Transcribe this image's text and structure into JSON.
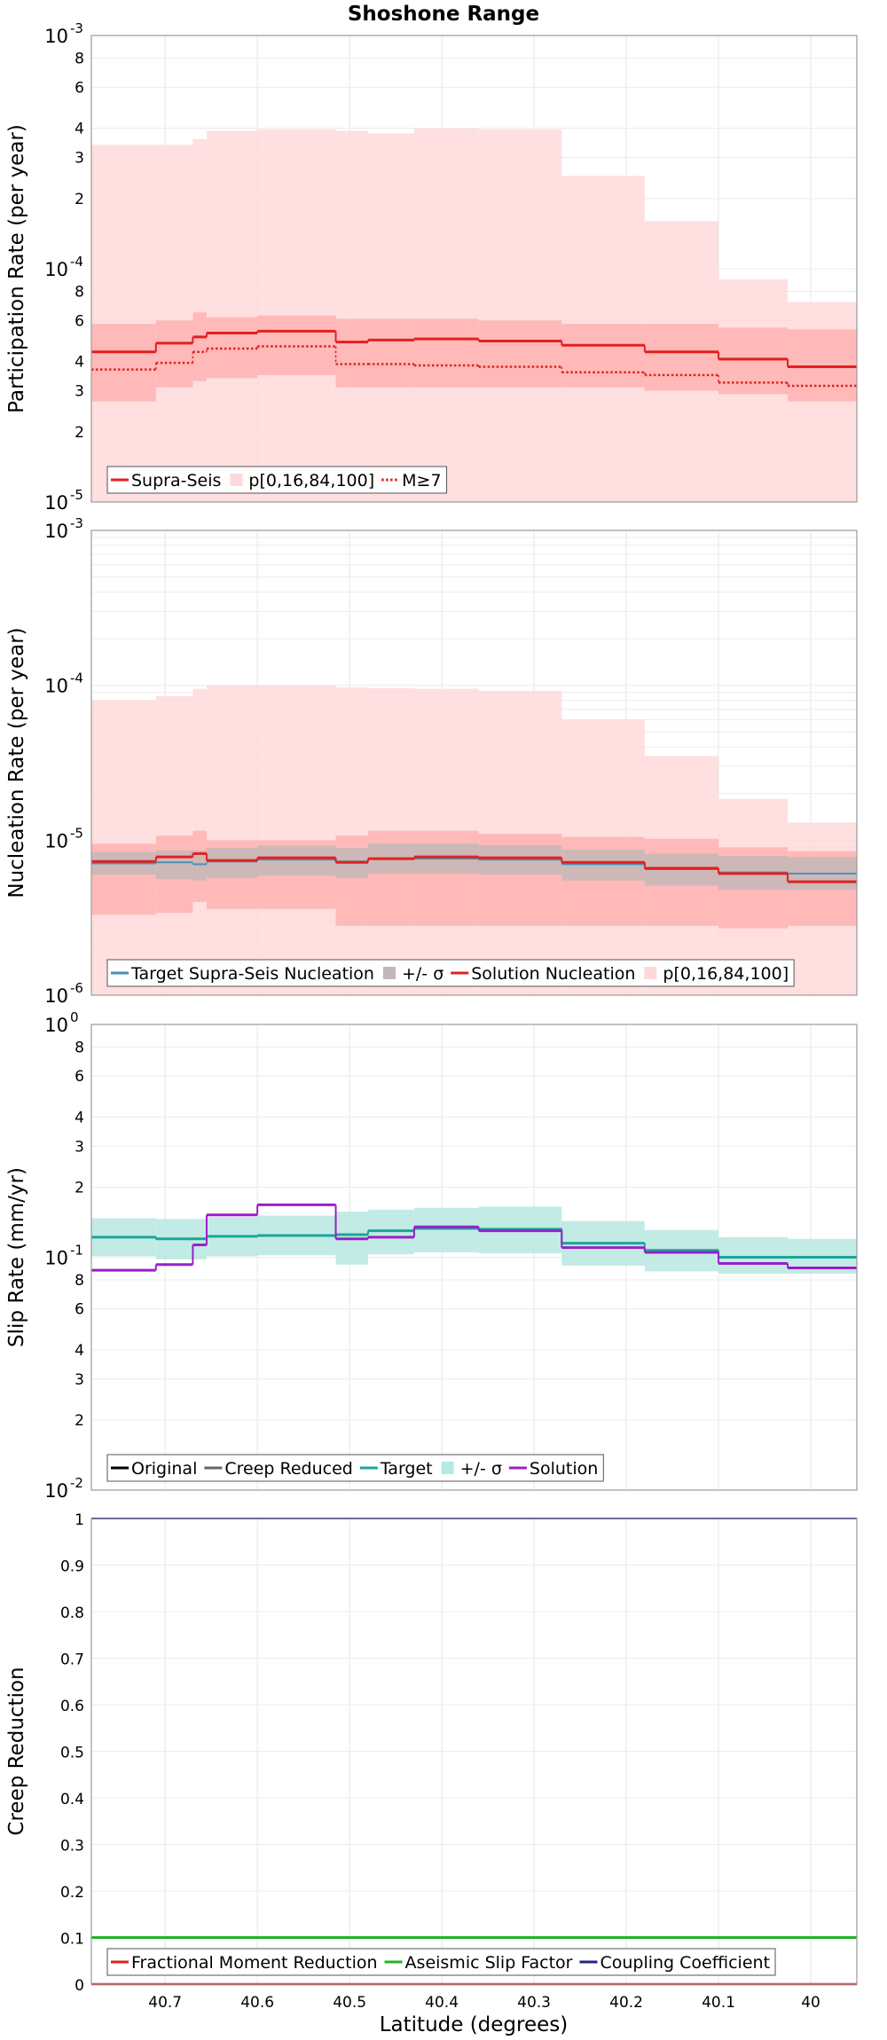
{
  "chart_data": {
    "title": "Shoshone Range",
    "xlabel": "Latitude (degrees)",
    "x_ticks": [
      "40.7",
      "40.6",
      "40.5",
      "40.4",
      "40.3",
      "40.2",
      "40.1",
      "40"
    ],
    "x_tick_values": [
      40.7,
      40.6,
      40.5,
      40.4,
      40.3,
      40.2,
      40.1,
      40.0
    ],
    "xlim": [
      40.78,
      39.95
    ],
    "panels": [
      {
        "type": "step",
        "ylabel": "Participation Rate (per year)",
        "yscale": "log",
        "ylim": [
          1e-05,
          0.001
        ],
        "major_ticks": [
          {
            "base": "10",
            "exp": "-5",
            "value": 1e-05
          },
          {
            "base": "10",
            "exp": "-4",
            "value": 0.0001
          },
          {
            "base": "10",
            "exp": "-3",
            "value": 0.001
          }
        ],
        "minor_ticks": [
          {
            "label": "2",
            "value": 2e-05
          },
          {
            "label": "3",
            "value": 3e-05
          },
          {
            "label": "4",
            "value": 4e-05
          },
          {
            "label": "6",
            "value": 6e-05
          },
          {
            "label": "8",
            "value": 8e-05
          },
          {
            "label": "2",
            "value": 0.0002
          },
          {
            "label": "3",
            "value": 0.0003
          },
          {
            "label": "4",
            "value": 0.0004
          },
          {
            "label": "6",
            "value": 0.0006
          },
          {
            "label": "8",
            "value": 0.0008
          }
        ],
        "bins": [
          40.78,
          40.71,
          40.67,
          40.655,
          40.6,
          40.515,
          40.48,
          40.43,
          40.36,
          40.27,
          40.18,
          40.1,
          40.025,
          39.95
        ],
        "bands": [
          {
            "name": "p0-100",
            "color": "#ffd9d9",
            "lo": [
              1e-05,
              1e-05,
              1e-05,
              1e-05,
              1e-05,
              1e-05,
              1e-05,
              1e-05,
              1e-05,
              1e-05,
              1e-05,
              1e-05,
              1e-05
            ],
            "hi": [
              0.00034,
              0.00034,
              0.00036,
              0.00039,
              0.000395,
              0.00039,
              0.00038,
              0.0004,
              0.000395,
              0.00025,
              0.00016,
              9e-05,
              7.2e-05
            ]
          },
          {
            "name": "p16-84",
            "color": "#ffb3b3",
            "lo": [
              2.7e-05,
              3.1e-05,
              3.3e-05,
              3.4e-05,
              3.5e-05,
              3.1e-05,
              3.1e-05,
              3.1e-05,
              3.1e-05,
              3.1e-05,
              3e-05,
              2.9e-05,
              2.7e-05
            ],
            "hi": [
              5.8e-05,
              6e-05,
              6.5e-05,
              6.2e-05,
              6.3e-05,
              6.1e-05,
              6.1e-05,
              6.1e-05,
              6e-05,
              5.8e-05,
              5.8e-05,
              5.6e-05,
              5.5e-05
            ]
          }
        ],
        "series": [
          {
            "name": "Supra-Seis",
            "color": "#e32020",
            "dash": "solid",
            "width": 3,
            "values": [
              4.4e-05,
              4.8e-05,
              5.1e-05,
              5.3e-05,
              5.4e-05,
              4.85e-05,
              4.95e-05,
              5e-05,
              4.9e-05,
              4.7e-05,
              4.4e-05,
              4.1e-05,
              3.8e-05
            ]
          },
          {
            "name": "M≥7",
            "color": "#e32020",
            "dash": "dotted",
            "width": 2.5,
            "values": [
              3.7e-05,
              3.95e-05,
              4.4e-05,
              4.55e-05,
              4.65e-05,
              3.9e-05,
              3.9e-05,
              3.85e-05,
              3.8e-05,
              3.6e-05,
              3.5e-05,
              3.25e-05,
              3.15e-05
            ]
          }
        ],
        "legend": [
          {
            "label": "Supra-Seis",
            "kind": "line",
            "color": "#e32020",
            "dash": "solid"
          },
          {
            "label": "p[0,16,84,100]",
            "kind": "box",
            "color": "#ffd9d9"
          },
          {
            "label": "M≥7",
            "kind": "line",
            "color": "#e32020",
            "dash": "dotted"
          }
        ]
      },
      {
        "type": "step",
        "ylabel": "Nucleation Rate (per year)",
        "yscale": "log",
        "ylim": [
          1e-06,
          0.001
        ],
        "major_ticks": [
          {
            "base": "10",
            "exp": "-6",
            "value": 1e-06
          },
          {
            "base": "10",
            "exp": "-5",
            "value": 1e-05
          },
          {
            "base": "10",
            "exp": "-4",
            "value": 0.0001
          },
          {
            "base": "10",
            "exp": "-3",
            "value": 0.001
          }
        ],
        "minor_ticks": [],
        "bins": [
          40.78,
          40.71,
          40.67,
          40.655,
          40.6,
          40.515,
          40.48,
          40.43,
          40.36,
          40.27,
          40.18,
          40.1,
          40.025,
          39.95
        ],
        "bands": [
          {
            "name": "p0-100",
            "color": "#ffd9d9",
            "lo": [
              1e-06,
              1e-06,
              1e-06,
              1e-06,
              1e-06,
              1e-06,
              1e-06,
              1e-06,
              1e-06,
              1e-06,
              1e-06,
              1e-06,
              1e-06
            ],
            "hi": [
              8e-05,
              8.5e-05,
              9.5e-05,
              0.0001,
              0.0001,
              9.7e-05,
              9.6e-05,
              9.5e-05,
              9.2e-05,
              6e-05,
              3.5e-05,
              1.85e-05,
              1.3e-05
            ]
          },
          {
            "name": "p16-84",
            "color": "#ffb3b3",
            "lo": [
              3.3e-06,
              3.4e-06,
              4e-06,
              3.6e-06,
              3.6e-06,
              2.8e-06,
              2.8e-06,
              2.8e-06,
              2.8e-06,
              2.8e-06,
              2.8e-06,
              2.7e-06,
              2.8e-06
            ],
            "hi": [
              9.5e-06,
              1.07e-05,
              1.15e-05,
              1e-05,
              1e-05,
              1.07e-05,
              1.15e-05,
              1.15e-05,
              1.1e-05,
              1.05e-05,
              1.02e-05,
              9e-06,
              8.5e-06
            ]
          },
          {
            "name": "target-sigma",
            "color": "#c4b7b7",
            "lo": [
              6e-06,
              5.6e-06,
              5.5e-06,
              5.7e-06,
              5.9e-06,
              5.7e-06,
              6.1e-06,
              6.1e-06,
              6e-06,
              5.5e-06,
              5.1e-06,
              4.8e-06,
              4.8e-06
            ],
            "hi": [
              8.4e-06,
              8.6e-06,
              8.6e-06,
              8.9e-06,
              9.2e-06,
              8.9e-06,
              9.5e-06,
              9.5e-06,
              9.3e-06,
              8.7e-06,
              8.2e-06,
              7.9e-06,
              7.8e-06
            ]
          }
        ],
        "series": [
          {
            "name": "Target Supra-Seis Nucleation",
            "color": "#4a90b5",
            "dash": "solid",
            "width": 2,
            "values": [
              7.1e-06,
              7.2e-06,
              7e-06,
              7.3e-06,
              7.5e-06,
              7.3e-06,
              7.6e-06,
              7.6e-06,
              7.5e-06,
              7e-06,
              6.5e-06,
              6.2e-06,
              6.1e-06
            ]
          },
          {
            "name": "Solution Nucleation",
            "color": "#e32020",
            "dash": "solid",
            "width": 3,
            "values": [
              7.3e-06,
              7.8e-06,
              8.2e-06,
              7.4e-06,
              7.7e-06,
              7.2e-06,
              7.6e-06,
              7.8e-06,
              7.7e-06,
              7.2e-06,
              6.6e-06,
              6.1e-06,
              5.4e-06
            ]
          }
        ],
        "legend": [
          {
            "label": "Target Supra-Seis Nucleation",
            "kind": "line",
            "color": "#4a90b5",
            "dash": "solid"
          },
          {
            "label": "+/- σ",
            "kind": "box",
            "color": "#c4b7b7"
          },
          {
            "label": "Solution Nucleation",
            "kind": "line",
            "color": "#e32020",
            "dash": "solid"
          },
          {
            "label": "p[0,16,84,100]",
            "kind": "box",
            "color": "#ffd9d9"
          }
        ]
      },
      {
        "type": "step",
        "ylabel": "Slip Rate (mm/yr)",
        "yscale": "log",
        "ylim": [
          0.01,
          1.0
        ],
        "major_ticks": [
          {
            "base": "10",
            "exp": "-2",
            "value": 0.01
          },
          {
            "base": "10",
            "exp": "-1",
            "value": 0.1
          },
          {
            "base": "10",
            "exp": "0",
            "value": 1.0
          }
        ],
        "minor_ticks": [
          {
            "label": "2",
            "value": 0.02
          },
          {
            "label": "3",
            "value": 0.03
          },
          {
            "label": "4",
            "value": 0.04
          },
          {
            "label": "6",
            "value": 0.06
          },
          {
            "label": "8",
            "value": 0.08
          },
          {
            "label": "2",
            "value": 0.2
          },
          {
            "label": "3",
            "value": 0.3
          },
          {
            "label": "4",
            "value": 0.4
          },
          {
            "label": "6",
            "value": 0.6
          },
          {
            "label": "8",
            "value": 0.8
          }
        ],
        "bins": [
          40.78,
          40.71,
          40.67,
          40.655,
          40.6,
          40.515,
          40.48,
          40.43,
          40.36,
          40.27,
          40.18,
          40.1,
          40.025,
          39.95
        ],
        "bands": [
          {
            "name": "target-sigma",
            "color": "#b8e8e2",
            "lo": [
              0.101,
              0.098,
              0.098,
              0.101,
              0.102,
              0.093,
              0.103,
              0.105,
              0.104,
              0.092,
              0.087,
              0.085,
              0.085
            ],
            "hi": [
              0.147,
              0.146,
              0.146,
              0.149,
              0.151,
              0.157,
              0.16,
              0.163,
              0.165,
              0.143,
              0.131,
              0.122,
              0.12
            ]
          }
        ],
        "series": [
          {
            "name": "Original",
            "color": "#000000",
            "dash": "solid",
            "width": 2,
            "values": [
              0.122,
              0.12,
              0.12,
              0.123,
              0.124,
              0.125,
              0.13,
              0.133,
              0.132,
              0.115,
              0.107,
              0.1,
              0.1
            ]
          },
          {
            "name": "Creep Reduced",
            "color": "#666666",
            "dash": "solid",
            "width": 2,
            "values": [
              0.122,
              0.12,
              0.12,
              0.123,
              0.124,
              0.125,
              0.13,
              0.133,
              0.132,
              0.115,
              0.107,
              0.1,
              0.1
            ]
          },
          {
            "name": "Target",
            "color": "#1aa69a",
            "dash": "solid",
            "width": 3,
            "values": [
              0.122,
              0.12,
              0.12,
              0.123,
              0.124,
              0.125,
              0.13,
              0.133,
              0.132,
              0.115,
              0.107,
              0.1,
              0.1
            ]
          },
          {
            "name": "Solution",
            "color": "#9b1fc8",
            "dash": "solid",
            "width": 3,
            "values": [
              0.088,
              0.093,
              0.113,
              0.152,
              0.168,
              0.12,
              0.122,
              0.135,
              0.13,
              0.11,
              0.105,
              0.094,
              0.09
            ]
          }
        ],
        "legend": [
          {
            "label": "Original",
            "kind": "line",
            "color": "#000000",
            "dash": "solid"
          },
          {
            "label": "Creep Reduced",
            "kind": "line",
            "color": "#666666",
            "dash": "solid"
          },
          {
            "label": "Target",
            "kind": "line",
            "color": "#1aa69a",
            "dash": "solid"
          },
          {
            "label": "+/- σ",
            "kind": "box",
            "color": "#b8e8e2"
          },
          {
            "label": "Solution",
            "kind": "line",
            "color": "#9b1fc8",
            "dash": "solid"
          }
        ]
      },
      {
        "type": "line",
        "ylabel": "Creep Reduction",
        "yscale": "linear",
        "ylim": [
          0,
          1
        ],
        "linear_ticks": [
          {
            "label": "0",
            "value": 0
          },
          {
            "label": "0.1",
            "value": 0.1
          },
          {
            "label": "0.2",
            "value": 0.2
          },
          {
            "label": "0.3",
            "value": 0.3
          },
          {
            "label": "0.4",
            "value": 0.4
          },
          {
            "label": "0.5",
            "value": 0.5
          },
          {
            "label": "0.6",
            "value": 0.6
          },
          {
            "label": "0.7",
            "value": 0.7
          },
          {
            "label": "0.8",
            "value": 0.8
          },
          {
            "label": "0.9",
            "value": 0.9
          },
          {
            "label": "1",
            "value": 1
          }
        ],
        "series": [
          {
            "name": "Fractional Moment Reduction",
            "color": "#e32020",
            "dash": "solid",
            "width": 2.5,
            "x": [
              40.78,
              39.95
            ],
            "values": [
              0,
              0
            ]
          },
          {
            "name": "Aseismic Slip Factor",
            "color": "#21b321",
            "dash": "solid",
            "width": 3,
            "x": [
              40.78,
              39.95
            ],
            "values": [
              0.1,
              0.1
            ]
          },
          {
            "name": "Coupling Coefficient",
            "color": "#23238e",
            "dash": "solid",
            "width": 2,
            "x": [
              40.78,
              39.95
            ],
            "values": [
              1,
              1
            ]
          }
        ],
        "legend": [
          {
            "label": "Fractional Moment Reduction",
            "kind": "line",
            "color": "#e32020",
            "dash": "solid"
          },
          {
            "label": "Aseismic Slip Factor",
            "kind": "line",
            "color": "#21b321",
            "dash": "solid"
          },
          {
            "label": "Coupling Coefficient",
            "kind": "line",
            "color": "#23238e",
            "dash": "solid"
          }
        ]
      }
    ]
  }
}
